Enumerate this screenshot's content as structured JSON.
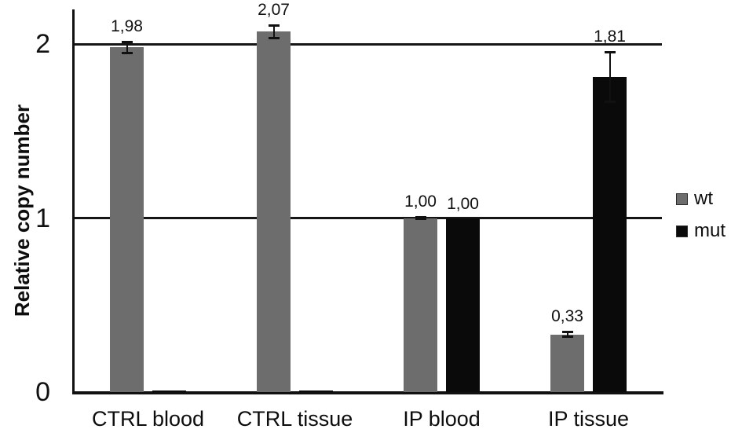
{
  "figure": {
    "background": "#ffffff",
    "text_color": "#111111",
    "axis_color": "#111111"
  },
  "chart_data": {
    "type": "bar",
    "title": "",
    "categories": [
      "CTRL blood",
      "CTRL tissue",
      "IP blood",
      "IP tissue"
    ],
    "series": [
      {
        "name": "wt",
        "color": "#6d6d6d",
        "values": [
          1.98,
          2.07,
          1.0,
          0.33
        ],
        "error": [
          0.04,
          0.045,
          0.012,
          0.02
        ],
        "data_labels": [
          "1,98",
          "2,07",
          "1,00",
          "0,33"
        ]
      },
      {
        "name": "mut",
        "color": "#0a0a0a",
        "values": [
          0.01,
          0.01,
          1.0,
          1.81
        ],
        "error": [
          0,
          0,
          0,
          0.15
        ],
        "data_labels": [
          "",
          "",
          "1,00",
          "1,81"
        ]
      }
    ],
    "xlabel": "",
    "ylabel": "Relative copy number",
    "ylim": [
      0,
      2.2
    ],
    "yticks": [
      0,
      1,
      2
    ],
    "gridlines": [
      1,
      2
    ],
    "grid": "horizontal",
    "legend_position": "right",
    "decimal_separator": ","
  }
}
